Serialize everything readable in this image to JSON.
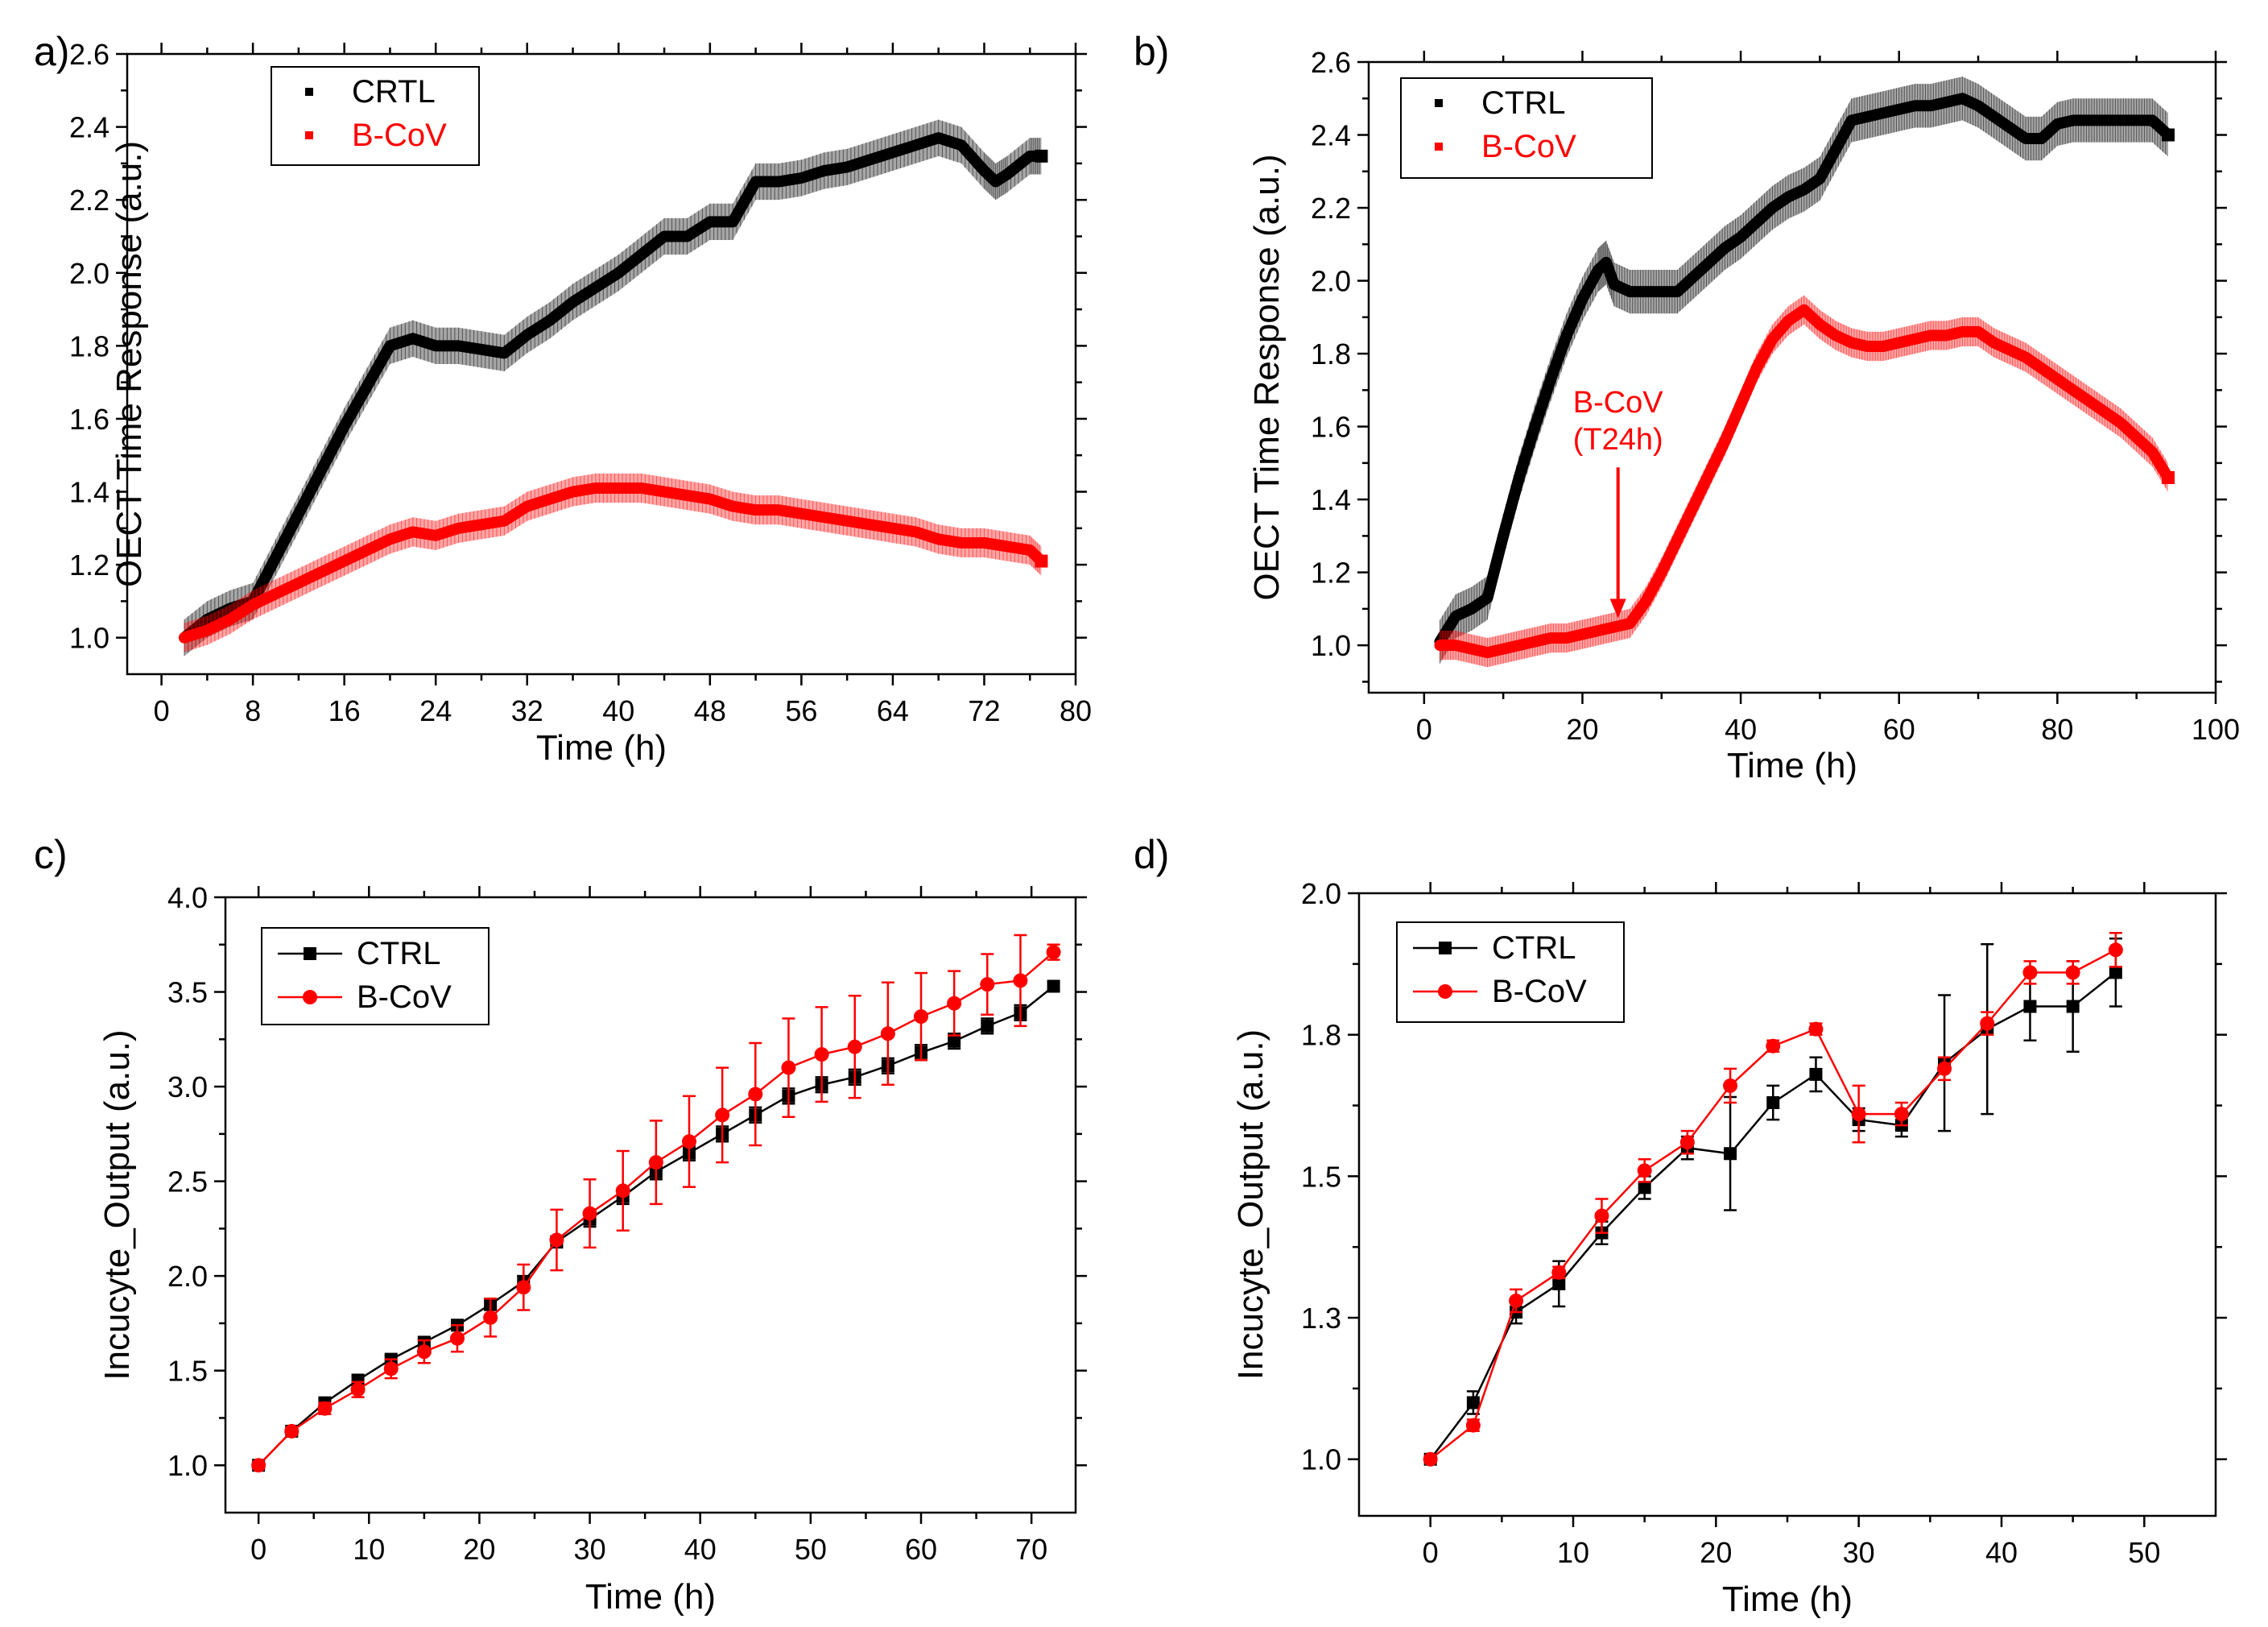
{
  "chart_data": [
    {
      "panel": "a)",
      "type": "line",
      "xlabel": "Time (h)",
      "ylabel": "OECT Time Response (a.u.)",
      "xlim": [
        -3,
        80
      ],
      "ylim": [
        0.9,
        2.6
      ],
      "xticks": [
        0,
        8,
        16,
        24,
        32,
        40,
        48,
        56,
        64,
        72,
        80
      ],
      "yticks": [
        1.0,
        1.2,
        1.4,
        1.6,
        1.8,
        2.0,
        2.2,
        2.4,
        2.6
      ],
      "ytick_decimals": 1,
      "style": "band",
      "legend": "top-left",
      "series": [
        {
          "name": "CRTL",
          "color": "#000000",
          "x": [
            2,
            4,
            6,
            8,
            10,
            12,
            14,
            16,
            18,
            20,
            22,
            24,
            26,
            28,
            30,
            32,
            34,
            36,
            38,
            40,
            42,
            44,
            46,
            48,
            50,
            52,
            54,
            56,
            58,
            60,
            62,
            64,
            66,
            68,
            70,
            72,
            73,
            74,
            76,
            77
          ],
          "y": [
            1.0,
            1.05,
            1.08,
            1.1,
            1.22,
            1.34,
            1.46,
            1.58,
            1.69,
            1.8,
            1.82,
            1.8,
            1.8,
            1.79,
            1.78,
            1.83,
            1.87,
            1.92,
            1.96,
            2.0,
            2.05,
            2.1,
            2.1,
            2.14,
            2.14,
            2.25,
            2.25,
            2.26,
            2.28,
            2.29,
            2.31,
            2.33,
            2.35,
            2.37,
            2.35,
            2.28,
            2.25,
            2.27,
            2.32,
            2.32
          ],
          "err": 0.05
        },
        {
          "name": "B-CoV",
          "color": "#ff0000",
          "x": [
            2,
            4,
            6,
            8,
            10,
            12,
            14,
            16,
            18,
            20,
            22,
            24,
            26,
            28,
            30,
            32,
            34,
            36,
            38,
            40,
            42,
            44,
            46,
            48,
            50,
            52,
            54,
            56,
            58,
            60,
            62,
            64,
            66,
            68,
            70,
            72,
            74,
            76,
            77
          ],
          "y": [
            1.0,
            1.02,
            1.05,
            1.09,
            1.12,
            1.15,
            1.18,
            1.21,
            1.24,
            1.27,
            1.29,
            1.28,
            1.3,
            1.31,
            1.32,
            1.36,
            1.38,
            1.4,
            1.41,
            1.41,
            1.41,
            1.4,
            1.39,
            1.38,
            1.36,
            1.35,
            1.35,
            1.34,
            1.33,
            1.32,
            1.31,
            1.3,
            1.29,
            1.27,
            1.26,
            1.26,
            1.25,
            1.24,
            1.21
          ],
          "err": 0.04
        }
      ]
    },
    {
      "panel": "b)",
      "type": "line",
      "xlabel": "Time (h)",
      "ylabel": "OECT Time Response (a.u.)",
      "xlim": [
        -7,
        100
      ],
      "ylim": [
        0.87,
        2.6
      ],
      "xticks": [
        0,
        20,
        40,
        60,
        80,
        100
      ],
      "yticks": [
        1.0,
        1.2,
        1.4,
        1.6,
        1.8,
        2.0,
        2.2,
        2.4,
        2.6
      ],
      "ytick_decimals": 1,
      "style": "band",
      "legend": "top-left",
      "annotation": {
        "lines": [
          "B-CoV",
          "(T24h)"
        ],
        "x": 24.5,
        "y": 1.07,
        "label_y": 1.55
      },
      "series": [
        {
          "name": "CTRL",
          "color": "#000000",
          "x": [
            2,
            4,
            6,
            8,
            10,
            12,
            14,
            16,
            18,
            20,
            22,
            23,
            24,
            26,
            28,
            30,
            32,
            34,
            36,
            38,
            40,
            42,
            44,
            46,
            48,
            50,
            52,
            54,
            56,
            58,
            60,
            62,
            64,
            66,
            68,
            70,
            72,
            74,
            76,
            78,
            80,
            82,
            84,
            86,
            88,
            90,
            92,
            94
          ],
          "y": [
            1.01,
            1.08,
            1.1,
            1.13,
            1.3,
            1.46,
            1.6,
            1.73,
            1.85,
            1.95,
            2.03,
            2.05,
            1.99,
            1.97,
            1.97,
            1.97,
            1.97,
            2.01,
            2.05,
            2.09,
            2.12,
            2.16,
            2.2,
            2.23,
            2.25,
            2.28,
            2.36,
            2.44,
            2.45,
            2.46,
            2.47,
            2.48,
            2.48,
            2.49,
            2.5,
            2.48,
            2.45,
            2.42,
            2.39,
            2.39,
            2.43,
            2.44,
            2.44,
            2.44,
            2.44,
            2.44,
            2.44,
            2.4
          ],
          "err": 0.06
        },
        {
          "name": "B-CoV",
          "color": "#ff0000",
          "x": [
            2,
            4,
            6,
            8,
            10,
            12,
            14,
            16,
            18,
            20,
            22,
            24,
            26,
            28,
            30,
            32,
            34,
            36,
            38,
            40,
            42,
            44,
            46,
            48,
            50,
            52,
            54,
            56,
            58,
            60,
            62,
            64,
            66,
            68,
            70,
            72,
            74,
            76,
            78,
            80,
            82,
            84,
            86,
            88,
            90,
            92,
            94
          ],
          "y": [
            1.0,
            1.0,
            0.99,
            0.98,
            0.99,
            1.0,
            1.01,
            1.02,
            1.02,
            1.03,
            1.04,
            1.05,
            1.06,
            1.12,
            1.2,
            1.29,
            1.38,
            1.47,
            1.56,
            1.66,
            1.76,
            1.84,
            1.89,
            1.92,
            1.88,
            1.85,
            1.83,
            1.82,
            1.82,
            1.83,
            1.84,
            1.85,
            1.85,
            1.86,
            1.86,
            1.83,
            1.81,
            1.79,
            1.76,
            1.73,
            1.7,
            1.67,
            1.64,
            1.61,
            1.57,
            1.53,
            1.46
          ],
          "err": 0.04
        }
      ]
    },
    {
      "panel": "c)",
      "type": "line",
      "xlabel": "Time (h)",
      "ylabel": "Incucyte_Output (a.u.)",
      "xlim": [
        -3,
        74
      ],
      "ylim": [
        0.75,
        4.0
      ],
      "xticks": [
        0,
        10,
        20,
        30,
        40,
        50,
        60,
        70
      ],
      "yticks": [
        1.0,
        1.5,
        2.0,
        2.5,
        3.0,
        3.5,
        4.0
      ],
      "ytick_decimals": 1,
      "style": "markers",
      "legend": "top-left",
      "series": [
        {
          "name": "CTRL",
          "color": "#000000",
          "marker": "square",
          "x": [
            0,
            3,
            6,
            9,
            12,
            15,
            18,
            21,
            24,
            27,
            30,
            33,
            36,
            39,
            42,
            45,
            48,
            51,
            54,
            57,
            60,
            63,
            66,
            69,
            72
          ],
          "y": [
            1.0,
            1.18,
            1.33,
            1.45,
            1.56,
            1.65,
            1.74,
            1.85,
            1.97,
            2.18,
            2.3,
            2.42,
            2.55,
            2.65,
            2.75,
            2.85,
            2.95,
            3.01,
            3.05,
            3.11,
            3.18,
            3.24,
            3.32,
            3.39,
            3.53
          ],
          "err": [
            0,
            0.02,
            0.02,
            0.02,
            0.02,
            0.02,
            0.02,
            0.03,
            0.03,
            0.03,
            0.04,
            0.04,
            0.04,
            0.04,
            0.04,
            0.04,
            0.04,
            0.04,
            0.04,
            0.04,
            0.04,
            0.04,
            0.04,
            0.04,
            0.02
          ]
        },
        {
          "name": "B-CoV",
          "color": "#ff0000",
          "marker": "circle",
          "x": [
            0,
            3,
            6,
            9,
            12,
            15,
            18,
            21,
            24,
            27,
            30,
            33,
            36,
            39,
            42,
            45,
            48,
            51,
            54,
            57,
            60,
            63,
            66,
            69,
            72
          ],
          "y": [
            1.0,
            1.18,
            1.3,
            1.4,
            1.51,
            1.6,
            1.67,
            1.78,
            1.94,
            2.19,
            2.33,
            2.45,
            2.6,
            2.71,
            2.85,
            2.96,
            3.1,
            3.17,
            3.21,
            3.28,
            3.37,
            3.44,
            3.54,
            3.56,
            3.71
          ],
          "err": [
            0,
            0.02,
            0.03,
            0.04,
            0.05,
            0.06,
            0.07,
            0.1,
            0.12,
            0.16,
            0.18,
            0.21,
            0.22,
            0.24,
            0.25,
            0.27,
            0.26,
            0.25,
            0.27,
            0.27,
            0.23,
            0.17,
            0.16,
            0.24,
            0.04
          ]
        }
      ]
    },
    {
      "panel": "d)",
      "type": "line",
      "xlabel": "Time (h)",
      "ylabel": "Incucyte_Output (a.u.)",
      "xlim": [
        -5,
        55
      ],
      "ylim": [
        0.9,
        2.0
      ],
      "xticks": [
        0,
        10,
        20,
        30,
        40,
        50
      ],
      "yticks": [
        1.0,
        1.25,
        1.5,
        1.75,
        2.0
      ],
      "ytick_labels": [
        "1.0",
        "1.3",
        "1.5",
        "1.8",
        "2.0"
      ],
      "style": "markers",
      "legend": "top-left",
      "series": [
        {
          "name": "CTRL",
          "color": "#000000",
          "marker": "square",
          "x": [
            0,
            3,
            6,
            9,
            12,
            15,
            18,
            21,
            24,
            27,
            30,
            33,
            36,
            39,
            42,
            45,
            48
          ],
          "y": [
            1.0,
            1.1,
            1.26,
            1.31,
            1.4,
            1.48,
            1.55,
            1.54,
            1.63,
            1.68,
            1.6,
            1.59,
            1.7,
            1.76,
            1.8,
            1.8,
            1.86
          ],
          "err": [
            0,
            0.02,
            0.02,
            0.04,
            0.02,
            0.02,
            0.02,
            0.1,
            0.03,
            0.03,
            0.02,
            0.02,
            0.12,
            0.15,
            0.06,
            0.08,
            0.06
          ]
        },
        {
          "name": "B-CoV",
          "color": "#ff0000",
          "marker": "circle",
          "x": [
            0,
            3,
            6,
            9,
            12,
            15,
            18,
            21,
            24,
            27,
            30,
            33,
            36,
            39,
            42,
            45,
            48
          ],
          "y": [
            1.0,
            1.06,
            1.28,
            1.33,
            1.43,
            1.51,
            1.56,
            1.66,
            1.73,
            1.76,
            1.61,
            1.61,
            1.69,
            1.77,
            1.86,
            1.86,
            1.9
          ],
          "err": [
            0,
            0.01,
            0.02,
            0.01,
            0.03,
            0.02,
            0.02,
            0.03,
            0.01,
            0.01,
            0.05,
            0.02,
            0.02,
            0.02,
            0.02,
            0.02,
            0.03
          ]
        }
      ]
    }
  ]
}
